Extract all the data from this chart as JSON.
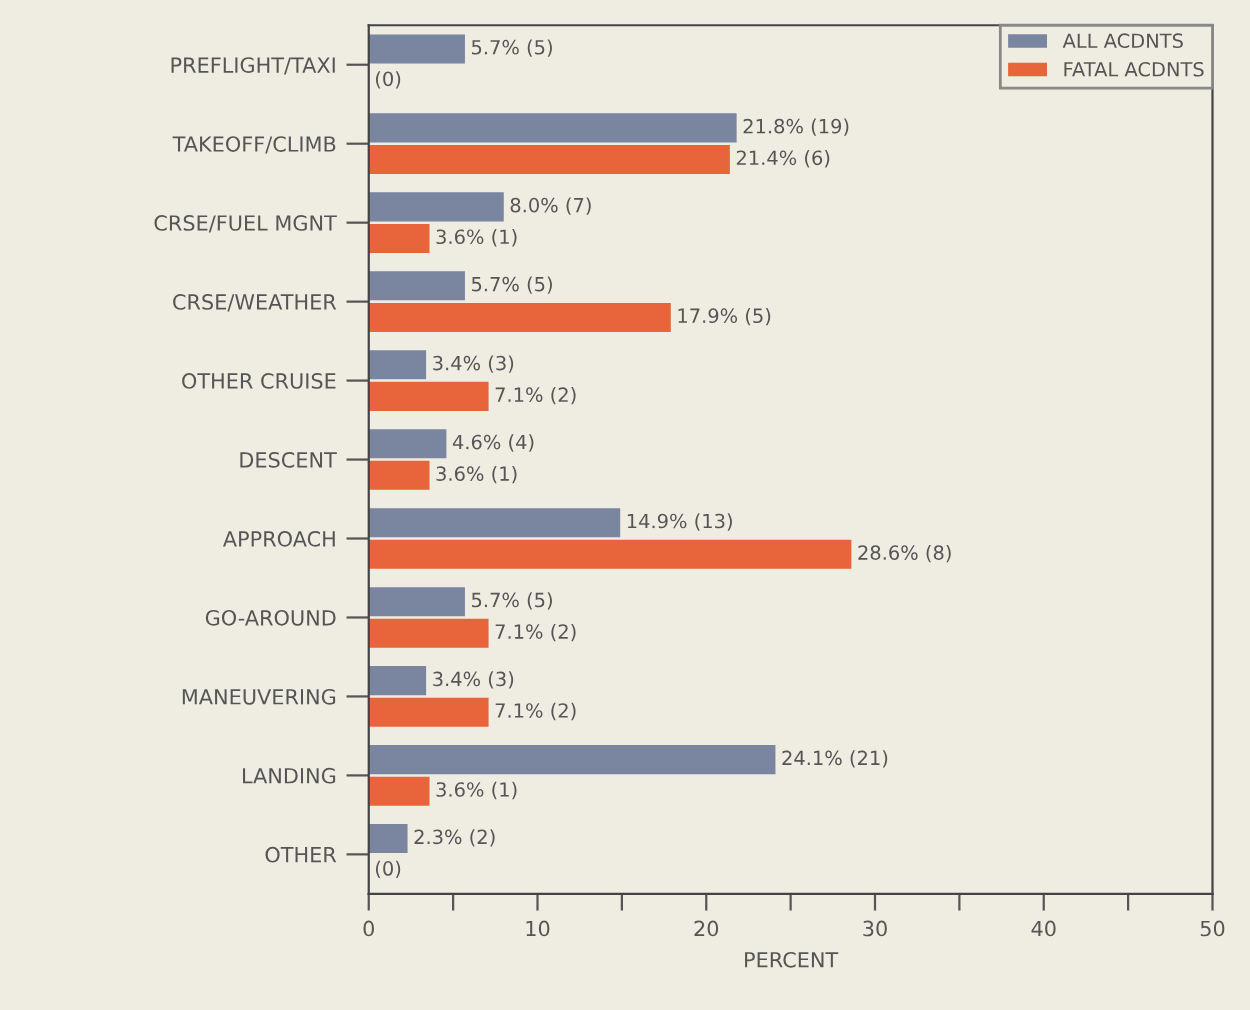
{
  "chart_data": {
    "type": "bar",
    "orientation": "horizontal",
    "xlabel": "PERCENT",
    "categories": [
      "PREFLIGHT/TAXI",
      "TAKEOFF/CLIMB",
      "CRSE/FUEL MGNT",
      "CRSE/WEATHER",
      "OTHER CRUISE",
      "DESCENT",
      "APPROACH",
      "GO-AROUND",
      "MANEUVERING",
      "LANDING",
      "OTHER"
    ],
    "series": [
      {
        "name": "ALL ACDNTS",
        "color": "#7a85a0",
        "values": [
          5.7,
          21.8,
          8.0,
          5.7,
          3.4,
          4.6,
          14.9,
          5.7,
          3.4,
          24.1,
          2.3
        ],
        "value_labels": [
          "5.7% (5)",
          "21.8% (19)",
          "8.0% (7)",
          "5.7% (5)",
          "3.4% (3)",
          "4.6% (4)",
          "14.9% (13)",
          "5.7% (5)",
          "3.4% (3)",
          "24.1% (21)",
          "2.3% (2)"
        ]
      },
      {
        "name": "FATAL ACDNTS",
        "color": "#e8643a",
        "values": [
          0,
          21.4,
          3.6,
          17.9,
          7.1,
          3.6,
          28.6,
          7.1,
          7.1,
          3.6,
          0
        ],
        "value_labels": [
          "(0)",
          "21.4% (6)",
          "3.6% (1)",
          "17.9% (5)",
          "7.1% (2)",
          "3.6% (1)",
          "28.6% (8)",
          "7.1% (2)",
          "7.1% (2)",
          "3.6% (1)",
          "(0)"
        ]
      }
    ],
    "xlim": [
      0,
      50
    ],
    "xticks": [
      0,
      {
        "value": 5,
        "label": null
      },
      10,
      {
        "value": 15,
        "label": null
      },
      20,
      {
        "value": 25,
        "label": null
      },
      30,
      {
        "value": 35,
        "label": null
      },
      40,
      {
        "value": 45,
        "label": null
      },
      50
    ],
    "legend": "top right",
    "grid": false
  }
}
